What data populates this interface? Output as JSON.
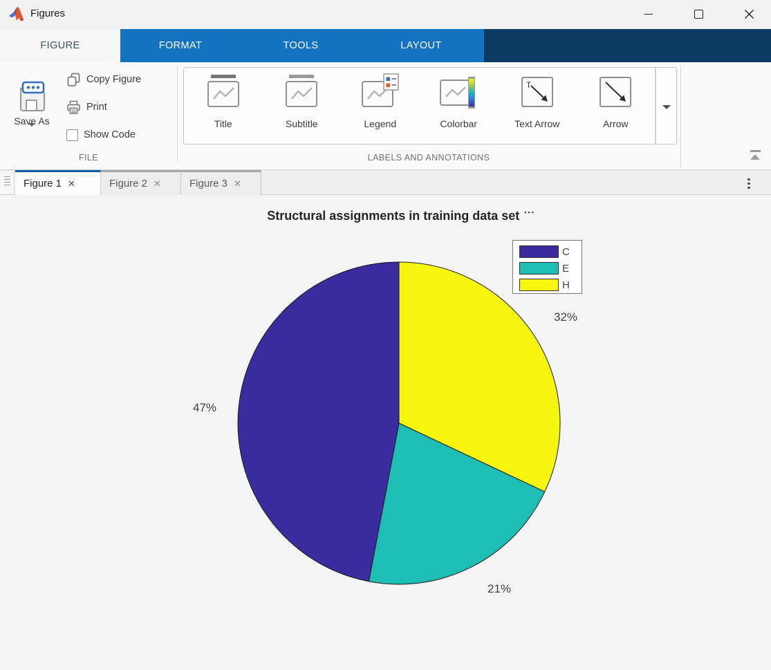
{
  "window": {
    "title": "Figures"
  },
  "ribbon": {
    "tabs": [
      {
        "label": "FIGURE",
        "active": true
      },
      {
        "label": "FORMAT",
        "active": false
      },
      {
        "label": "TOOLS",
        "active": false
      },
      {
        "label": "LAYOUT",
        "active": false
      }
    ],
    "file": {
      "label": "FILE",
      "save_as": "Save As",
      "copy_figure": "Copy Figure",
      "print": "Print",
      "show_code": "Show Code",
      "show_code_checked": false
    },
    "annotations": {
      "label": "LABELS AND ANNOTATIONS",
      "items": [
        "Title",
        "Subtitle",
        "Legend",
        "Colorbar",
        "Text Arrow",
        "Arrow"
      ]
    }
  },
  "figure_tabs": [
    {
      "label": "Figure 1",
      "active": true
    },
    {
      "label": "Figure 2",
      "active": false
    },
    {
      "label": "Figure 3",
      "active": false
    }
  ],
  "ui": {
    "close_glyph": "✕",
    "title_menu_glyph": "•••"
  },
  "chart_data": {
    "type": "pie",
    "title": "Structural assignments in training data set",
    "slices": [
      {
        "label": "C",
        "value": 47,
        "pct_label": "47%",
        "color": "#3a2b9e"
      },
      {
        "label": "E",
        "value": 21,
        "pct_label": "21%",
        "color": "#1ebeb5"
      },
      {
        "label": "H",
        "value": 32,
        "pct_label": "32%",
        "color": "#f6f60f"
      }
    ],
    "start_angle_deg": 90,
    "direction": "counterclockwise",
    "edge_color": "#1a1a1a",
    "legend": {
      "position": "top-right",
      "entries": [
        "C",
        "E",
        "H"
      ]
    }
  }
}
